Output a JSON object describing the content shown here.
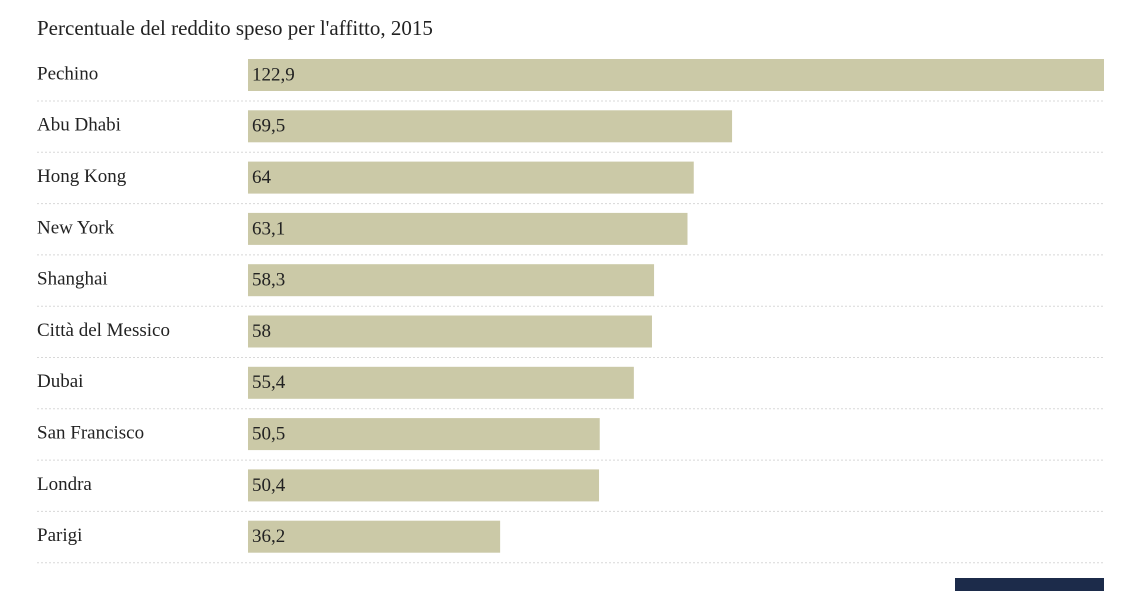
{
  "chart_data": {
    "type": "barh",
    "title": "Percentuale del reddito speso per l'affitto, 2015",
    "categories": [
      "Pechino",
      "Abu Dhabi",
      "Hong Kong",
      "New York",
      "Shanghai",
      "Città del Messico",
      "Dubai",
      "San Francisco",
      "Londra",
      "Parigi"
    ],
    "values": [
      122.9,
      69.5,
      64,
      63.1,
      58.3,
      58,
      55.4,
      50.5,
      50.4,
      36.2
    ],
    "value_labels": [
      "122,9",
      "69,5",
      "64",
      "63,1",
      "58,3",
      "58",
      "55,4",
      "50,5",
      "50,4",
      "36,2"
    ],
    "color": "#cbc9a7"
  }
}
